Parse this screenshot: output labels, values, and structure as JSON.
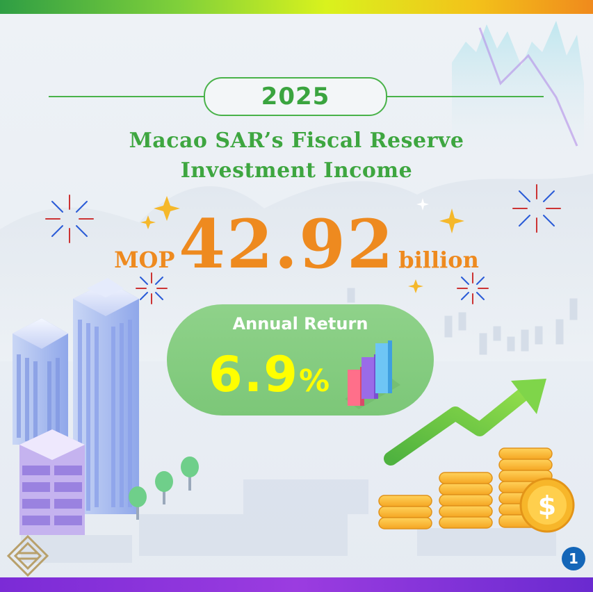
{
  "header": {
    "year": "2025"
  },
  "title": {
    "line1": "Macao SAR’s Fiscal Reserve",
    "line2": "Investment Income"
  },
  "income": {
    "currency": "MOP",
    "amount": "42.92",
    "unit": "billion"
  },
  "annual_return": {
    "label": "Annual Return",
    "value": "6.9",
    "unit": "%"
  },
  "page_number": "1",
  "icons": [
    "logo-icon",
    "sparkle-icon",
    "firework-icon",
    "building-icon",
    "tree-icon",
    "bar-chart-icon",
    "arrow-up-icon",
    "coin-stack-icon",
    "dollar-coin-icon",
    "world-map-icon"
  ],
  "colors": {
    "green": "#49b249",
    "orange": "#ee8a1f",
    "yellow": "#ffff00",
    "pill_green": "#7cc778",
    "badge_blue": "#1466b8",
    "purple": "#7b2bd6"
  }
}
